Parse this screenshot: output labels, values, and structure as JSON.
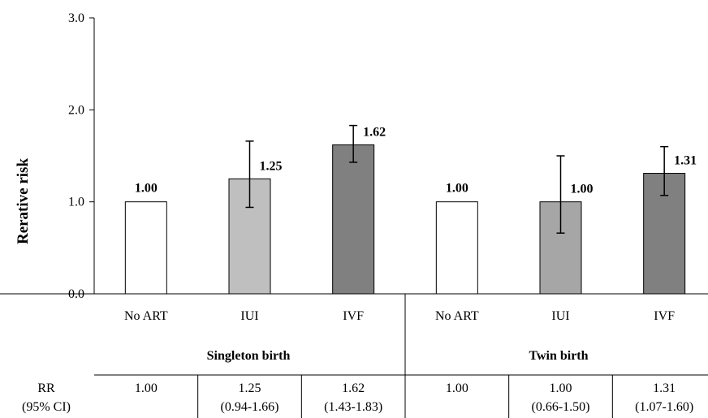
{
  "chart_data": {
    "type": "bar",
    "ylabel": "Rerative risk",
    "ylim": [
      0,
      3
    ],
    "yticks": [
      "0.0",
      "1.0",
      "2.0",
      "3.0"
    ],
    "grid": false,
    "groups": [
      "Singleton birth",
      "Twin birth"
    ],
    "categories": [
      "No ART",
      "IUI",
      "IVF",
      "No ART",
      "IUI",
      "IVF"
    ],
    "values": [
      1.0,
      1.25,
      1.62,
      1.0,
      1.0,
      1.31
    ],
    "labels": [
      "1.00",
      "1.25",
      "1.62",
      "1.00",
      "1.00",
      "1.31"
    ],
    "ci_low": [
      null,
      0.94,
      1.43,
      null,
      0.66,
      1.07
    ],
    "ci_high": [
      null,
      1.66,
      1.83,
      null,
      1.5,
      1.6
    ],
    "colors": [
      "#ffffff",
      "#bfbfbf",
      "#808080",
      "#ffffff",
      "#a6a6a6",
      "#808080"
    ],
    "table": {
      "row_label_line1": "RR",
      "row_label_line2": "(95% CI)",
      "rr": [
        "1.00",
        "1.25",
        "1.62",
        "1.00",
        "1.00",
        "1.31"
      ],
      "ci": [
        "",
        "(0.94-1.66)",
        "(1.43-1.83)",
        "",
        "(0.66-1.50)",
        "(1.07-1.60)"
      ]
    }
  }
}
